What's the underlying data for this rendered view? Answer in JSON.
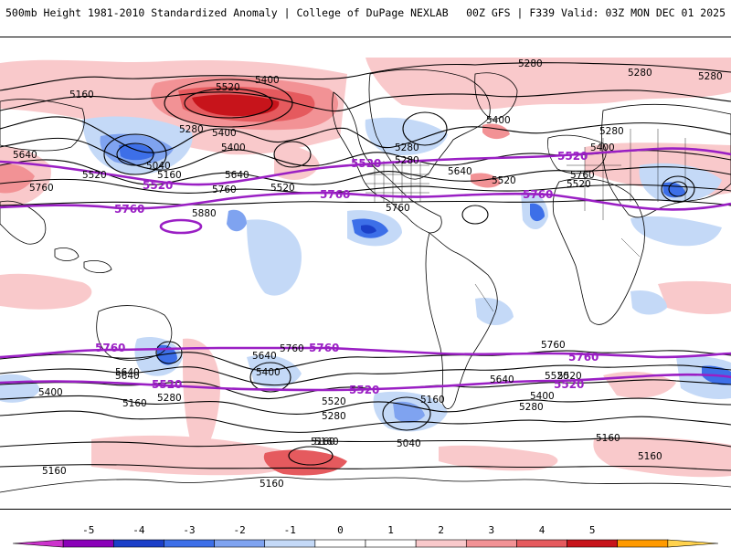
{
  "header": {
    "title_left": "500mb Height 1981-2010 Standardized Anomaly | College of DuPage NEXLAB",
    "title_right": "00Z GFS | F339 Valid: 03Z MON DEC 01 2025"
  },
  "colors": {
    "anomaly_bins": [
      "#cc33cc",
      "#8a00b8",
      "#1b3fc8",
      "#3d6fe8",
      "#7fa3f0",
      "#c4d9f7",
      "#ffffff",
      "#ffffff",
      "#f9c9cb",
      "#f29295",
      "#e55a5e",
      "#c7141b",
      "#ff9a00",
      "#ffd24d"
    ],
    "contour_line": "#000000",
    "highlight_line": "#9a1fc4",
    "coastline": "#000000"
  },
  "colorbar": {
    "ticks": [
      "-5",
      "-4",
      "-3",
      "-2",
      "-1",
      "0",
      "1",
      "2",
      "3",
      "4",
      "5"
    ]
  },
  "map": {
    "highlight_levels": [
      "5520",
      "5760"
    ],
    "contour_labels": [
      {
        "text": "5160"
      },
      {
        "text": "5400"
      },
      {
        "text": "5520"
      },
      {
        "text": "5280"
      },
      {
        "text": "5400"
      },
      {
        "text": "5040"
      },
      {
        "text": "5160"
      },
      {
        "text": "5400"
      },
      {
        "text": "5640"
      },
      {
        "text": "5280"
      },
      {
        "text": "5520"
      },
      {
        "text": "5640"
      },
      {
        "text": "5760"
      },
      {
        "text": "5520"
      },
      {
        "text": "5760"
      },
      {
        "text": "5880"
      },
      {
        "text": "5760"
      },
      {
        "text": "5280"
      },
      {
        "text": "5280"
      },
      {
        "text": "5280"
      },
      {
        "text": "5400"
      },
      {
        "text": "5280"
      },
      {
        "text": "5640"
      },
      {
        "text": "5520"
      },
      {
        "text": "5400"
      },
      {
        "text": "5760"
      },
      {
        "text": "5640"
      },
      {
        "text": "5760"
      },
      {
        "text": "5520"
      },
      {
        "text": "5640"
      },
      {
        "text": "5400"
      },
      {
        "text": "5280"
      },
      {
        "text": "5160"
      },
      {
        "text": "5520"
      },
      {
        "text": "5280"
      },
      {
        "text": "5160"
      },
      {
        "text": "5040"
      },
      {
        "text": "5160"
      },
      {
        "text": "5400"
      },
      {
        "text": "5640"
      },
      {
        "text": "5520"
      },
      {
        "text": "5280"
      },
      {
        "text": "5400"
      },
      {
        "text": "5160"
      },
      {
        "text": "5160"
      },
      {
        "text": "5160"
      },
      {
        "text": "5160"
      },
      {
        "text": "5160"
      },
      {
        "text": "5520"
      },
      {
        "text": "5280"
      },
      {
        "text": "5640"
      },
      {
        "text": "5760"
      }
    ],
    "purple_labels": [
      {
        "text": "5520"
      },
      {
        "text": "5520"
      },
      {
        "text": "5760"
      },
      {
        "text": "5760"
      },
      {
        "text": "5760"
      },
      {
        "text": "5520"
      },
      {
        "text": "5760"
      },
      {
        "text": "5760"
      },
      {
        "text": "5520"
      },
      {
        "text": "5520"
      },
      {
        "text": "5760"
      },
      {
        "text": "5520"
      }
    ]
  }
}
